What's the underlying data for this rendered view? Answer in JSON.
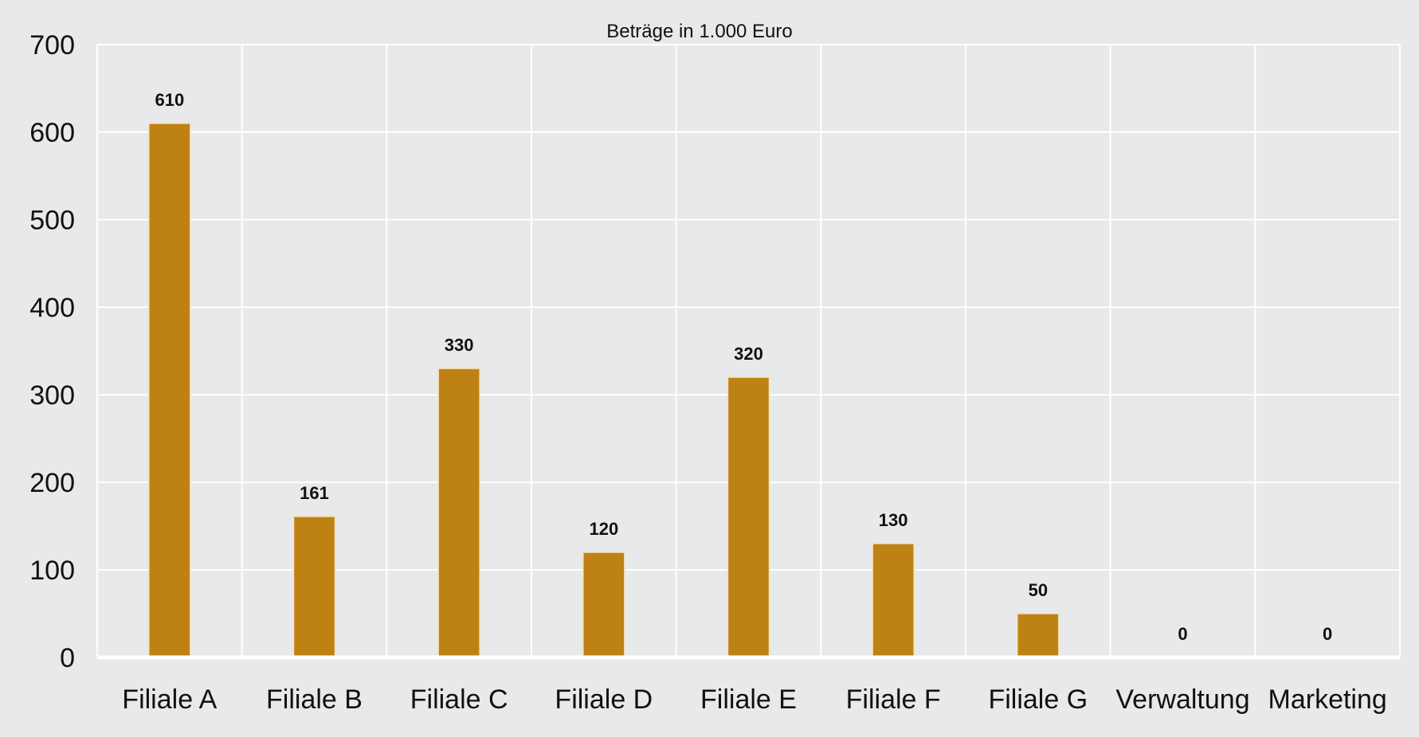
{
  "chart_data": {
    "type": "bar",
    "title": "Beträge in 1.000 Euro",
    "xlabel": "",
    "ylabel": "",
    "categories": [
      "Filiale A",
      "Filiale B",
      "Filiale C",
      "Filiale D",
      "Filiale E",
      "Filiale F",
      "Filiale G",
      "Verwaltung",
      "Marketing"
    ],
    "values": [
      610,
      161,
      330,
      120,
      320,
      130,
      50,
      0,
      0
    ],
    "data_labels": [
      "610",
      "161",
      "330",
      "120",
      "320",
      "130",
      "50",
      "0",
      "0"
    ],
    "ylim": [
      0,
      700
    ],
    "yticks": [
      "0",
      "100",
      "200",
      "300",
      "400",
      "500",
      "600",
      "700"
    ],
    "grid": true,
    "legend": "none",
    "colors": {
      "bar": "#BE8214",
      "plot_background": "#E8E9EA",
      "grid": "#FFFFFF",
      "text": "#111111"
    }
  }
}
